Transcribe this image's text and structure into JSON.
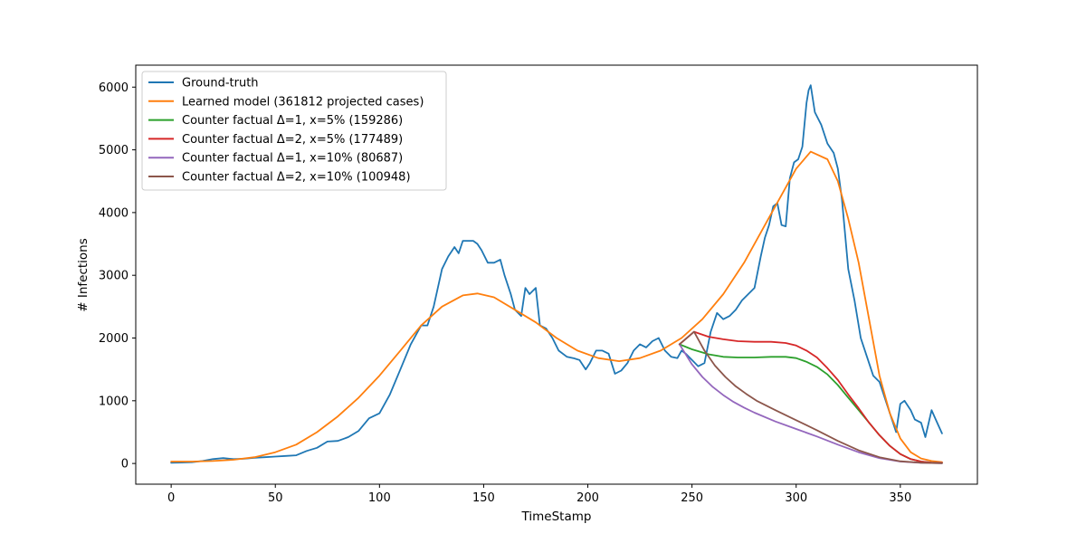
{
  "chart_data": {
    "type": "line",
    "title": "",
    "xlabel": "TimeStamp",
    "ylabel": "# Infections",
    "xlim": [
      -17,
      387
    ],
    "ylim": [
      -330,
      6350
    ],
    "xticks": [
      0,
      50,
      100,
      150,
      200,
      250,
      300,
      350
    ],
    "yticks": [
      0,
      1000,
      2000,
      3000,
      4000,
      5000,
      6000
    ],
    "grid": false,
    "legend_position": "upper-left",
    "series": [
      {
        "name": "Ground-truth",
        "color": "#1f77b4",
        "x": [
          0,
          5,
          10,
          15,
          20,
          25,
          30,
          35,
          40,
          45,
          50,
          55,
          60,
          65,
          70,
          75,
          80,
          85,
          90,
          95,
          100,
          105,
          110,
          115,
          120,
          123,
          126,
          130,
          133,
          136,
          138,
          140,
          142,
          145,
          147,
          149,
          152,
          155,
          158,
          160,
          163,
          165,
          168,
          170,
          172,
          175,
          177,
          180,
          183,
          186,
          190,
          193,
          196,
          199,
          201,
          204,
          207,
          210,
          213,
          216,
          219,
          222,
          225,
          228,
          231,
          234,
          237,
          240,
          243,
          245,
          247,
          250,
          253,
          256,
          259,
          262,
          265,
          268,
          271,
          274,
          277,
          280,
          283,
          285,
          287,
          289,
          291,
          293,
          295,
          297,
          299,
          301,
          303,
          305,
          306,
          307,
          309,
          312,
          315,
          318,
          320,
          322,
          325,
          328,
          331,
          334,
          337,
          340,
          342,
          344,
          346,
          348,
          350,
          352,
          355,
          357,
          360,
          362,
          365,
          367,
          370
        ],
        "y": [
          10,
          15,
          20,
          40,
          70,
          85,
          70,
          75,
          90,
          100,
          110,
          120,
          130,
          200,
          250,
          350,
          360,
          420,
          520,
          720,
          800,
          1100,
          1500,
          1900,
          2200,
          2200,
          2500,
          3100,
          3300,
          3450,
          3350,
          3550,
          3550,
          3550,
          3500,
          3400,
          3200,
          3200,
          3250,
          3000,
          2700,
          2450,
          2350,
          2800,
          2700,
          2800,
          2200,
          2150,
          2000,
          1800,
          1700,
          1680,
          1650,
          1500,
          1600,
          1800,
          1800,
          1750,
          1430,
          1480,
          1600,
          1800,
          1900,
          1850,
          1950,
          2000,
          1800,
          1700,
          1680,
          1800,
          1750,
          1650,
          1550,
          1600,
          2100,
          2400,
          2300,
          2350,
          2450,
          2600,
          2700,
          2800,
          3300,
          3600,
          3800,
          4100,
          4150,
          3800,
          3780,
          4550,
          4800,
          4850,
          5050,
          5750,
          5950,
          6030,
          5600,
          5400,
          5100,
          4950,
          4700,
          4200,
          3100,
          2600,
          2000,
          1700,
          1400,
          1300,
          1100,
          900,
          700,
          500,
          950,
          1000,
          850,
          700,
          650,
          420,
          850,
          700,
          480
        ]
      },
      {
        "name": "Learned model (361812 projected cases)",
        "color": "#ff7f0e",
        "x": [
          0,
          10,
          20,
          30,
          40,
          50,
          60,
          70,
          80,
          90,
          100,
          110,
          120,
          130,
          140,
          147,
          155,
          165,
          175,
          185,
          195,
          205,
          215,
          225,
          235,
          245,
          255,
          265,
          275,
          285,
          295,
          300,
          307,
          315,
          320,
          325,
          330,
          335,
          340,
          345,
          350,
          355,
          360,
          365,
          370
        ],
        "y": [
          30,
          30,
          40,
          60,
          100,
          180,
          300,
          500,
          750,
          1050,
          1400,
          1800,
          2200,
          2500,
          2680,
          2710,
          2650,
          2450,
          2250,
          2000,
          1800,
          1680,
          1630,
          1680,
          1800,
          2000,
          2300,
          2700,
          3200,
          3800,
          4400,
          4700,
          4970,
          4850,
          4500,
          3900,
          3200,
          2300,
          1400,
          800,
          400,
          180,
          80,
          40,
          20
        ]
      },
      {
        "name": "Counter factual Δ=1, x=5% (159286)",
        "color": "#2ca02c",
        "x": [
          244,
          250,
          258,
          265,
          272,
          280,
          288,
          295,
          300,
          305,
          310,
          315,
          320,
          325,
          330,
          335,
          340,
          345,
          350,
          355,
          360,
          365,
          370
        ],
        "y": [
          1900,
          1820,
          1740,
          1700,
          1690,
          1690,
          1700,
          1700,
          1680,
          1620,
          1540,
          1420,
          1250,
          1050,
          850,
          650,
          450,
          280,
          150,
          70,
          30,
          15,
          10
        ]
      },
      {
        "name": "Counter factual Δ=2, x=5% (177489)",
        "color": "#d62728",
        "x": [
          244,
          251,
          258,
          265,
          272,
          280,
          288,
          295,
          300,
          305,
          310,
          315,
          320,
          325,
          330,
          335,
          340,
          345,
          350,
          355,
          360,
          365,
          370
        ],
        "y": [
          1900,
          2100,
          2020,
          1980,
          1950,
          1940,
          1940,
          1920,
          1880,
          1800,
          1690,
          1520,
          1330,
          1100,
          880,
          650,
          450,
          280,
          150,
          70,
          30,
          15,
          10
        ]
      },
      {
        "name": "Counter factual Δ=1, x=10% (80687)",
        "color": "#9467bd",
        "x": [
          244,
          250,
          255,
          260,
          265,
          270,
          275,
          280,
          290,
          300,
          310,
          320,
          330,
          340,
          350,
          360,
          370
        ],
        "y": [
          1900,
          1580,
          1380,
          1220,
          1090,
          980,
          890,
          810,
          670,
          550,
          430,
          300,
          180,
          85,
          30,
          10,
          5
        ]
      },
      {
        "name": "Counter factual Δ=2, x=10% (100948)",
        "color": "#8c564b",
        "x": [
          244,
          251,
          256,
          261,
          266,
          271,
          276,
          281,
          290,
          300,
          310,
          320,
          330,
          340,
          350,
          360,
          370
        ],
        "y": [
          1900,
          2100,
          1800,
          1560,
          1380,
          1230,
          1110,
          1000,
          850,
          690,
          530,
          360,
          210,
          100,
          35,
          12,
          5
        ]
      }
    ]
  }
}
